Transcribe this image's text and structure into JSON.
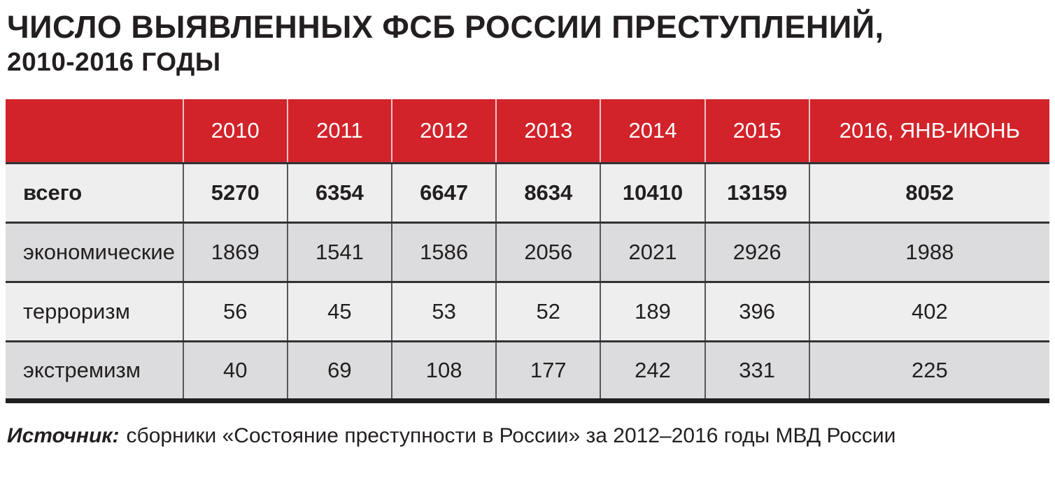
{
  "title": {
    "line1": "ЧИСЛО ВЫЯВЛЕННЫХ ФСБ РОССИИ ПРЕСТУПЛЕНИЙ,",
    "line2": "2010-2016 ГОДЫ"
  },
  "chart_data": {
    "type": "table",
    "columns": [
      "",
      "2010",
      "2011",
      "2012",
      "2013",
      "2014",
      "2015",
      "2016, ЯНВ-ИЮНЬ"
    ],
    "rows": [
      {
        "label": "всего",
        "values": [
          5270,
          6354,
          6647,
          8634,
          10410,
          13159,
          8052
        ],
        "emphasis": true
      },
      {
        "label": "экономические",
        "values": [
          1869,
          1541,
          1586,
          2056,
          2021,
          2926,
          1988
        ],
        "emphasis": false
      },
      {
        "label": "терроризм",
        "values": [
          56,
          45,
          53,
          52,
          189,
          396,
          402
        ],
        "emphasis": false
      },
      {
        "label": "экстремизм",
        "values": [
          40,
          69,
          108,
          177,
          242,
          331,
          225
        ],
        "emphasis": false
      }
    ]
  },
  "source": {
    "label": "Источник:",
    "text": "сборники «Состояние преступности в России» за 2012–2016 годы МВД России"
  },
  "colors": {
    "header_bg": "#d2232a",
    "header_text": "#ffffff",
    "row_light": "#eeeeef",
    "row_dark": "#dcdcde",
    "divider_dark": "#323235",
    "bottom_bar": "#202022",
    "text": "#231f20"
  }
}
